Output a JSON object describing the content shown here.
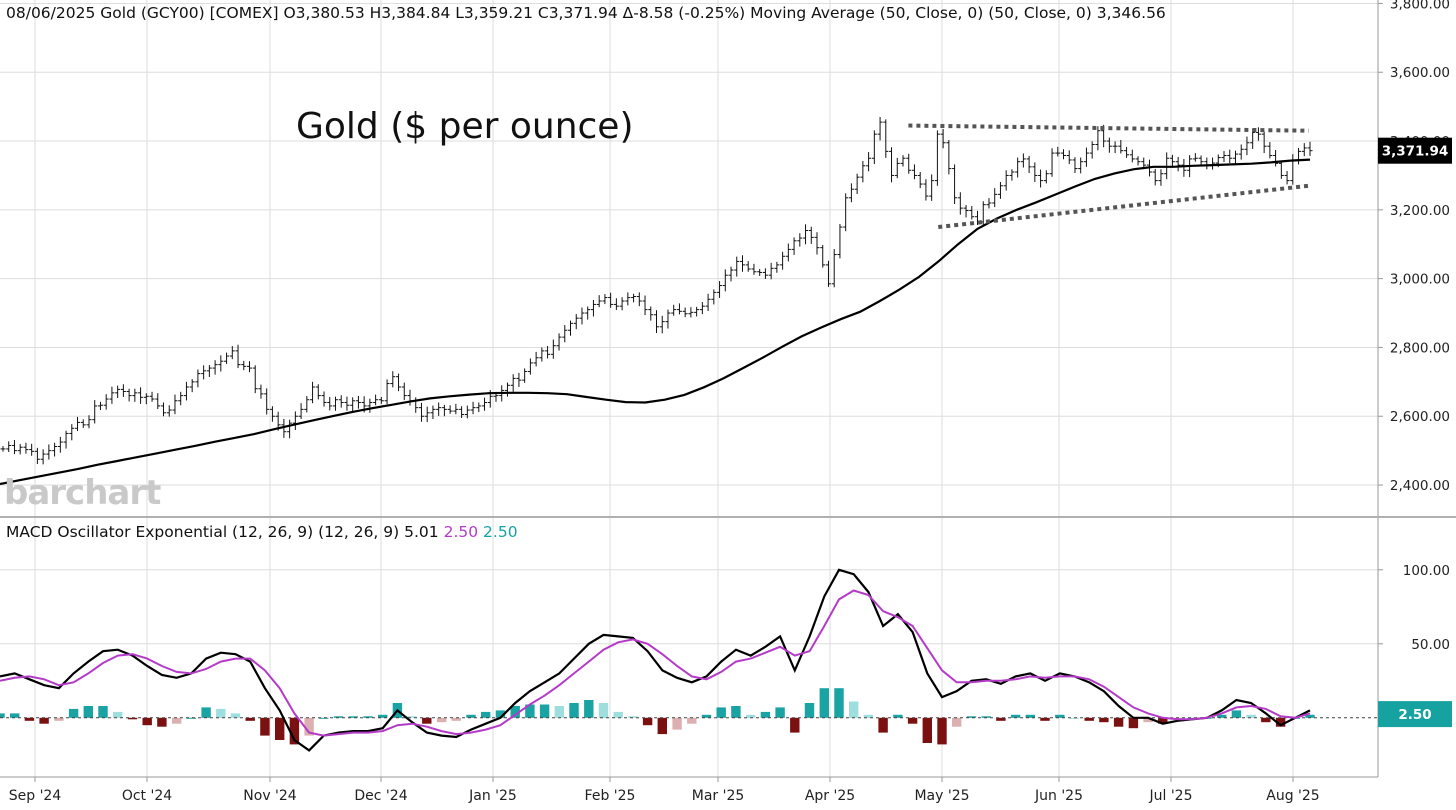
{
  "header": {
    "date": "08/06/2025",
    "symbol": "Gold (GCY00) [COMEX]",
    "open": "O3,380.53",
    "high": "H3,384.84",
    "low": "L3,359.21",
    "close": "C3,371.94",
    "change": "Δ-8.58 (-0.25%)",
    "ma_label": "Moving Average (50, Close, 0)  (50, Close, 0)",
    "ma_value": "3,346.56"
  },
  "macd_header": {
    "label": "MACD Oscillator Exponential (12, 26, 9)  (12, 26, 9)",
    "macd_value": "5.01",
    "signal_value": "2.50",
    "hist_value": "2.50"
  },
  "watermark": "barchart",
  "chart_title": "Gold ($ per ounce)",
  "last_price_label": "3,371.94",
  "last_macd_label": "2.50",
  "colors": {
    "price": "#111111",
    "ma": "#000000",
    "grid": "#dedede",
    "signal": "#b43bc8",
    "hist_pos": "#1aa3a3",
    "hist_pos_light": "#9fdede",
    "hist_neg": "#7a1010",
    "hist_neg_light": "#dcb0b0",
    "badge_price": "#000000",
    "badge_macd": "#17a2a2"
  },
  "chart_data": [
    {
      "type": "ohlc",
      "x_labels": [
        "Sep '24",
        "Oct '24",
        "Nov '24",
        "Dec '24",
        "Jan '25",
        "Feb '25",
        "Mar '25",
        "Apr '25",
        "May '25",
        "Jun '25",
        "Jul '25",
        "Aug '25"
      ],
      "y_ticks": [
        "2,400.00",
        "2,600.00",
        "2,800.00",
        "3,000.00",
        "3,200.00",
        "3,400.00",
        "3,600.00",
        "3,800.00"
      ],
      "y_tick_values": [
        2400,
        2600,
        2800,
        3000,
        3200,
        3400,
        3600,
        3800
      ],
      "ylim": [
        2310,
        3810
      ],
      "close": [
        2505,
        2515,
        2500,
        2510,
        2503,
        2498,
        2475,
        2490,
        2500,
        2512,
        2525,
        2550,
        2565,
        2582,
        2575,
        2590,
        2630,
        2632,
        2650,
        2668,
        2678,
        2672,
        2660,
        2668,
        2655,
        2658,
        2650,
        2630,
        2610,
        2618,
        2645,
        2660,
        2685,
        2700,
        2724,
        2732,
        2740,
        2750,
        2760,
        2775,
        2790,
        2750,
        2745,
        2740,
        2680,
        2665,
        2620,
        2600,
        2575,
        2555,
        2580,
        2600,
        2620,
        2648,
        2685,
        2660,
        2640,
        2630,
        2648,
        2640,
        2632,
        2645,
        2640,
        2630,
        2640,
        2648,
        2645,
        2695,
        2715,
        2685,
        2660,
        2645,
        2625,
        2600,
        2610,
        2620,
        2625,
        2620,
        2615,
        2620,
        2605,
        2618,
        2625,
        2630,
        2640,
        2658,
        2660,
        2675,
        2690,
        2710,
        2705,
        2730,
        2755,
        2770,
        2790,
        2780,
        2805,
        2830,
        2850,
        2870,
        2885,
        2900,
        2910,
        2925,
        2935,
        2945,
        2925,
        2920,
        2935,
        2945,
        2948,
        2935,
        2910,
        2895,
        2860,
        2875,
        2900,
        2910,
        2905,
        2898,
        2902,
        2910,
        2920,
        2940,
        2960,
        2980,
        3010,
        3025,
        3050,
        3040,
        3028,
        3020,
        3018,
        3010,
        3030,
        3040,
        3065,
        3085,
        3110,
        3118,
        3140,
        3120,
        3090,
        3040,
        2985,
        3070,
        3150,
        3235,
        3260,
        3295,
        3328,
        3350,
        3420,
        3455,
        3370,
        3300,
        3335,
        3350,
        3315,
        3300,
        3275,
        3240,
        3285,
        3420,
        3395,
        3320,
        3235,
        3205,
        3198,
        3180,
        3165,
        3215,
        3220,
        3245,
        3270,
        3300,
        3310,
        3340,
        3348,
        3325,
        3300,
        3285,
        3305,
        3365,
        3365,
        3358,
        3345,
        3320,
        3340,
        3365,
        3390,
        3430,
        3400,
        3385,
        3385,
        3372,
        3360,
        3348,
        3340,
        3330,
        3310,
        3285,
        3305,
        3350,
        3340,
        3330,
        3315,
        3348,
        3350,
        3340,
        3328,
        3336,
        3352,
        3358,
        3350,
        3362,
        3376,
        3395,
        3425,
        3420,
        3385,
        3358,
        3335,
        3300,
        3285,
        3345,
        3370,
        3380,
        3372
      ],
      "ma_50": [
        2403,
        2414,
        2425,
        2436,
        2447,
        2459,
        2470,
        2481,
        2492,
        2503,
        2514,
        2526,
        2537,
        2548,
        2562,
        2575,
        2588,
        2600,
        2612,
        2623,
        2633,
        2643,
        2652,
        2658,
        2663,
        2667,
        2668,
        2668,
        2667,
        2664,
        2656,
        2648,
        2641,
        2640,
        2648,
        2662,
        2684,
        2710,
        2740,
        2770,
        2802,
        2832,
        2858,
        2882,
        2904,
        2935,
        2968,
        3005,
        3050,
        3100,
        3145,
        3175,
        3200,
        3222,
        3245,
        3268,
        3290,
        3306,
        3318,
        3325,
        3325,
        3328,
        3330,
        3332,
        3334,
        3338,
        3343,
        3346
      ],
      "resistance_line": {
        "x": [
          "2025-04-22",
          "2025-08-05"
        ],
        "y": [
          3445,
          3430
        ]
      },
      "support_line": {
        "x": [
          "2025-04-30",
          "2025-08-05"
        ],
        "y": [
          3150,
          3270
        ]
      },
      "last_price": 3371.94,
      "ma_last": 3346.56
    },
    {
      "type": "line",
      "title": "MACD Oscillator Exponential (12, 26, 9)",
      "y_ticks": [
        "50.00",
        "100.00"
      ],
      "y_tick_values": [
        50,
        100
      ],
      "ylim": [
        -40,
        135
      ],
      "series": [
        {
          "name": "5.01",
          "values": [
            28,
            30,
            26,
            22,
            20,
            30,
            38,
            45,
            46,
            42,
            35,
            29,
            27,
            30,
            40,
            44,
            43,
            38,
            20,
            5,
            -15,
            -22,
            -12,
            -10,
            -9,
            -9,
            -7,
            5,
            -3,
            -10,
            -12,
            -13,
            -8,
            -4,
            0,
            10,
            18,
            24,
            30,
            40,
            50,
            56,
            55,
            54,
            45,
            32,
            27,
            24,
            28,
            38,
            46,
            42,
            48,
            55,
            32,
            55,
            82,
            100,
            97,
            85,
            62,
            70,
            58,
            30,
            14,
            18,
            25,
            26,
            23,
            28,
            30,
            25,
            30,
            28,
            24,
            18,
            8,
            0,
            0,
            -4,
            -2,
            -1,
            0,
            5,
            12,
            10,
            3,
            -5,
            0,
            5
          ]
        },
        {
          "name": "2.50",
          "values": [
            25,
            27,
            28,
            26,
            22,
            24,
            30,
            37,
            42,
            43,
            40,
            35,
            31,
            30,
            33,
            38,
            40,
            40,
            32,
            20,
            3,
            -10,
            -12,
            -11,
            -10,
            -10,
            -9,
            -5,
            -4,
            -6,
            -9,
            -11,
            -10,
            -8,
            -5,
            2,
            9,
            15,
            22,
            30,
            38,
            46,
            51,
            53,
            50,
            43,
            35,
            28,
            26,
            31,
            38,
            40,
            44,
            48,
            42,
            45,
            62,
            80,
            86,
            83,
            72,
            68,
            62,
            47,
            32,
            24,
            24,
            25,
            25,
            26,
            28,
            27,
            28,
            28,
            26,
            21,
            14,
            7,
            3,
            0,
            -1,
            -1,
            0,
            3,
            7,
            8,
            6,
            1,
            0,
            3
          ]
        }
      ],
      "histogram_name": "2.50",
      "histogram": [
        3,
        3,
        -2,
        -4,
        -2,
        6,
        8,
        8,
        4,
        -1,
        -5,
        -6,
        -4,
        0,
        7,
        6,
        3,
        -2,
        -12,
        -15,
        -18,
        -12,
        0,
        1,
        1,
        1,
        2,
        10,
        1,
        -4,
        -3,
        -2,
        2,
        4,
        5,
        8,
        9,
        9,
        8,
        10,
        12,
        10,
        4,
        1,
        -5,
        -11,
        -8,
        -4,
        2,
        7,
        8,
        2,
        4,
        7,
        -10,
        10,
        20,
        20,
        11,
        2,
        -10,
        2,
        -4,
        -17,
        -18,
        -6,
        1,
        1,
        -2,
        2,
        2,
        -2,
        2,
        0,
        -2,
        -3,
        -6,
        -7,
        -3,
        -4,
        -1,
        0,
        0,
        2,
        5,
        2,
        -3,
        -6,
        0,
        2
      ],
      "x_labels": [
        "Sep '24",
        "Oct '24",
        "Nov '24",
        "Dec '24",
        "Jan '25",
        "Feb '25",
        "Mar '25",
        "Apr '25",
        "May '25",
        "Jun '25",
        "Jul '25",
        "Aug '25"
      ],
      "last_value": 2.5
    }
  ]
}
